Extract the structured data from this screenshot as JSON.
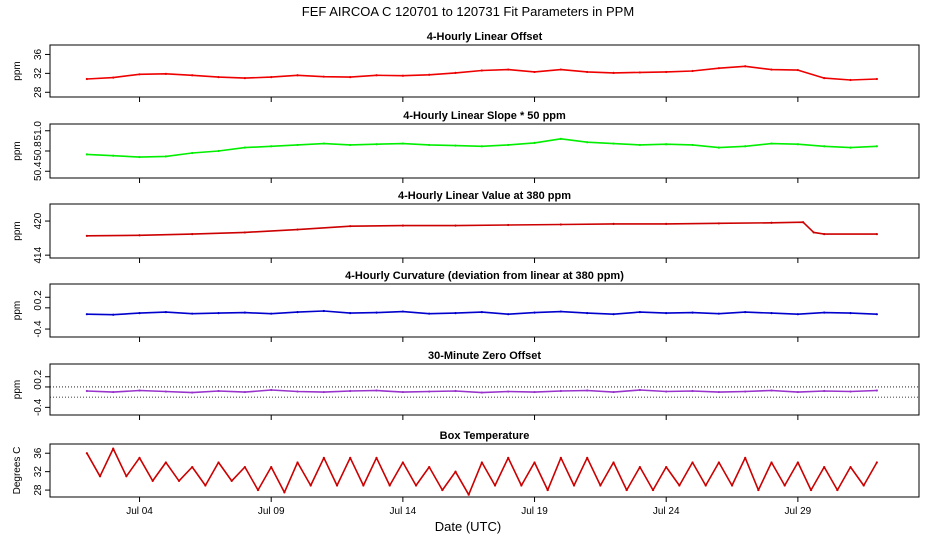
{
  "page": {
    "title": "FEF   AIRCOA C   120701 to 120731   Fit Parameters in PPM",
    "xlabel": "Date (UTC)",
    "xticks": [
      "Jul 04",
      "Jul 09",
      "Jul 14",
      "Jul 19",
      "Jul 24",
      "Jul 29"
    ],
    "xtick_days": [
      4,
      9,
      14,
      19,
      24,
      29
    ],
    "xlim_days": [
      0.6,
      33.6
    ]
  },
  "chart_data": [
    {
      "type": "line",
      "title": "4-Hourly Linear Offset",
      "ylabel": "ppm",
      "yticks": [
        "28",
        "32",
        "36"
      ],
      "ytick_values": [
        28,
        32,
        36
      ],
      "ylim": [
        27,
        38
      ],
      "color": "#ee0000",
      "series": [
        {
          "x": [
            2,
            3,
            4,
            5,
            6,
            7,
            8,
            9,
            10,
            11,
            12,
            13,
            14,
            15,
            16,
            17,
            18,
            19,
            20,
            21,
            22,
            23,
            24,
            25,
            26,
            27,
            28,
            29,
            30,
            31,
            32
          ],
          "values": [
            30.8,
            31.1,
            31.8,
            31.9,
            31.6,
            31.2,
            31.0,
            31.2,
            31.6,
            31.3,
            31.2,
            31.6,
            31.5,
            31.7,
            32.1,
            32.6,
            32.8,
            32.3,
            32.8,
            32.3,
            32.1,
            32.2,
            32.3,
            32.5,
            33.1,
            33.5,
            32.8,
            32.7,
            31.0,
            30.6,
            30.8
          ]
        }
      ]
    },
    {
      "type": "line",
      "title": "4-Hourly Linear Slope * 50 ppm",
      "ylabel": "ppm",
      "yticks": [
        "50.4",
        "50.8",
        "51.0"
      ],
      "ytick_values": [
        50.45,
        50.75,
        51.05
      ],
      "ylim": [
        50.35,
        51.15
      ],
      "color": "#00ee00",
      "series": [
        {
          "x": [
            2,
            3,
            4,
            5,
            6,
            7,
            8,
            9,
            10,
            11,
            12,
            13,
            14,
            15,
            16,
            17,
            18,
            19,
            20,
            21,
            22,
            23,
            24,
            25,
            26,
            27,
            28,
            29,
            30,
            31,
            32
          ],
          "values": [
            50.7,
            50.68,
            50.66,
            50.67,
            50.72,
            50.75,
            50.8,
            50.82,
            50.84,
            50.86,
            50.84,
            50.85,
            50.86,
            50.84,
            50.83,
            50.82,
            50.84,
            50.87,
            50.93,
            50.88,
            50.86,
            50.84,
            50.85,
            50.84,
            50.8,
            50.82,
            50.86,
            50.85,
            50.82,
            50.8,
            50.82
          ]
        }
      ]
    },
    {
      "type": "line",
      "title": "4-Hourly Linear Value at 380 ppm",
      "ylabel": "ppm",
      "yticks": [
        "414",
        "420"
      ],
      "ytick_values": [
        414,
        420
      ],
      "ylim": [
        413.5,
        423
      ],
      "color": "#cc0000",
      "series": [
        {
          "x": [
            2,
            4,
            6,
            8,
            10,
            12,
            14,
            16,
            18,
            20,
            22,
            24,
            26,
            28,
            29.2,
            29.6,
            30,
            32
          ],
          "values": [
            417.4,
            417.5,
            417.7,
            418.0,
            418.5,
            419.1,
            419.2,
            419.2,
            419.3,
            419.4,
            419.5,
            419.5,
            419.6,
            419.7,
            419.8,
            418.0,
            417.7,
            417.7
          ]
        }
      ]
    },
    {
      "type": "line",
      "title": "4-Hourly Curvature (deviation from linear at 380 ppm)",
      "ylabel": "ppm",
      "yticks": [
        "-0.4",
        "0",
        "0.2"
      ],
      "ytick_values": [
        -0.4,
        0,
        0.2
      ],
      "ylim": [
        -0.55,
        0.45
      ],
      "color": "#0000cc",
      "series": [
        {
          "x": [
            2,
            3,
            4,
            5,
            6,
            7,
            8,
            9,
            10,
            11,
            12,
            13,
            14,
            15,
            16,
            17,
            18,
            19,
            20,
            21,
            22,
            23,
            24,
            25,
            26,
            27,
            28,
            29,
            30,
            31,
            32
          ],
          "values": [
            -0.12,
            -0.13,
            -0.1,
            -0.08,
            -0.11,
            -0.1,
            -0.09,
            -0.11,
            -0.08,
            -0.06,
            -0.1,
            -0.09,
            -0.07,
            -0.11,
            -0.1,
            -0.08,
            -0.12,
            -0.09,
            -0.07,
            -0.1,
            -0.12,
            -0.08,
            -0.1,
            -0.09,
            -0.11,
            -0.08,
            -0.1,
            -0.12,
            -0.09,
            -0.1,
            -0.12
          ]
        }
      ]
    },
    {
      "type": "line",
      "title": "30-Minute Zero Offset",
      "ylabel": "ppm",
      "yticks": [
        "-0.4",
        "0",
        "0.2"
      ],
      "ytick_values": [
        -0.4,
        0,
        0.2
      ],
      "ylim": [
        -0.55,
        0.45
      ],
      "color": "#9933cc",
      "reference_lines": [
        0.0,
        -0.2
      ],
      "series": [
        {
          "x": [
            2,
            3,
            4,
            5,
            6,
            7,
            8,
            9,
            10,
            11,
            12,
            13,
            14,
            15,
            16,
            17,
            18,
            19,
            20,
            21,
            22,
            23,
            24,
            25,
            26,
            27,
            28,
            29,
            30,
            31,
            32
          ],
          "values": [
            -0.08,
            -0.1,
            -0.07,
            -0.09,
            -0.11,
            -0.08,
            -0.1,
            -0.06,
            -0.09,
            -0.1,
            -0.08,
            -0.07,
            -0.1,
            -0.09,
            -0.08,
            -0.11,
            -0.09,
            -0.1,
            -0.08,
            -0.07,
            -0.1,
            -0.06,
            -0.09,
            -0.08,
            -0.1,
            -0.09,
            -0.07,
            -0.1,
            -0.08,
            -0.09,
            -0.07
          ]
        }
      ]
    },
    {
      "type": "line",
      "title": "Box Temperature",
      "ylabel": "Degrees C",
      "yticks": [
        "28",
        "32",
        "36"
      ],
      "ytick_values": [
        28,
        32,
        36
      ],
      "ylim": [
        26.5,
        38
      ],
      "color": "#cc0000",
      "series": [
        {
          "x": [
            2.0,
            2.5,
            3.0,
            3.5,
            4.0,
            4.5,
            5.0,
            5.5,
            6.0,
            6.5,
            7.0,
            7.5,
            8.0,
            8.5,
            9.0,
            9.5,
            10.0,
            10.5,
            11.0,
            11.5,
            12.0,
            12.5,
            13.0,
            13.5,
            14.0,
            14.5,
            15.0,
            15.5,
            16.0,
            16.5,
            17.0,
            17.5,
            18.0,
            18.5,
            19.0,
            19.5,
            20.0,
            20.5,
            21.0,
            21.5,
            22.0,
            22.5,
            23.0,
            23.5,
            24.0,
            24.5,
            25.0,
            25.5,
            26.0,
            26.5,
            27.0,
            27.5,
            28.0,
            28.5,
            29.0,
            29.5,
            30.0,
            30.5,
            31.0,
            31.5,
            32.0
          ],
          "values": [
            36,
            31,
            37,
            31,
            35,
            30,
            34,
            30,
            33,
            29,
            34,
            30,
            33,
            28,
            33,
            27.5,
            34,
            29,
            35,
            29,
            35,
            29,
            35,
            29,
            34,
            29,
            33,
            28,
            32,
            27,
            34,
            29,
            35,
            29,
            34,
            28,
            35,
            29,
            35,
            29,
            34,
            28,
            33,
            28,
            33,
            29,
            34,
            29,
            34,
            29,
            35,
            28,
            34,
            29,
            34,
            28,
            33,
            28,
            33,
            29,
            34
          ]
        }
      ]
    }
  ]
}
